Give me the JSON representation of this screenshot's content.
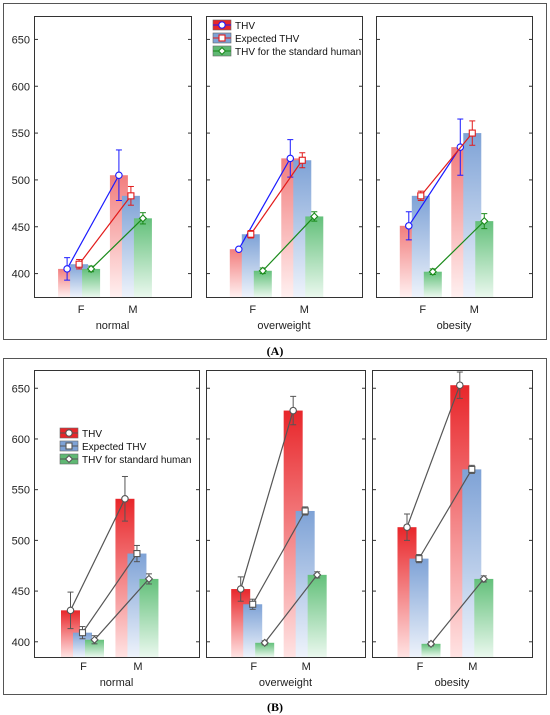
{
  "caption_a": "(A)",
  "caption_b": "(B)",
  "colors": {
    "thv": "#e8262a",
    "expected": "#5a86c5",
    "standard": "#3fa856",
    "line_thv_a": "#1a1aff",
    "line_exp_a": "#e21b1b",
    "line_std_a": "#1a8a1a",
    "line_b": "#555555"
  },
  "chart_data": [
    {
      "type": "bar",
      "id": "A",
      "legend": [
        "THV",
        "Expected THV",
        "THV for the standard human"
      ],
      "legend_position": "top-left of middle panel",
      "ylim": [
        375,
        675
      ],
      "yticks": [
        400,
        450,
        500,
        550,
        600,
        650
      ],
      "categories": [
        "F",
        "M"
      ],
      "groups": [
        {
          "name": "normal",
          "series": [
            {
              "name": "THV",
              "values": [
                405,
                505
              ],
              "errors": [
                12,
                27
              ]
            },
            {
              "name": "Expected THV",
              "values": [
                410,
                483
              ],
              "errors": [
                5,
                10
              ]
            },
            {
              "name": "THV for the standard human",
              "values": [
                405,
                459
              ],
              "errors": [
                3,
                6
              ]
            }
          ]
        },
        {
          "name": "overweight",
          "series": [
            {
              "name": "THV",
              "values": [
                426,
                523
              ],
              "errors": [
                0,
                20
              ]
            },
            {
              "name": "Expected THV",
              "values": [
                442,
                521
              ],
              "errors": [
                4,
                8
              ]
            },
            {
              "name": "THV for the standard human",
              "values": [
                403,
                461
              ],
              "errors": [
                3,
                5
              ]
            }
          ]
        },
        {
          "name": "obesity",
          "series": [
            {
              "name": "THV",
              "values": [
                451,
                535
              ],
              "errors": [
                15,
                30
              ]
            },
            {
              "name": "Expected THV",
              "values": [
                483,
                550
              ],
              "errors": [
                5,
                13
              ]
            },
            {
              "name": "THV for the standard human",
              "values": [
                402,
                456
              ],
              "errors": [
                3,
                8
              ]
            }
          ]
        }
      ]
    },
    {
      "type": "bar",
      "id": "B",
      "legend": [
        "THV",
        "Expected THV",
        "THV for standard human"
      ],
      "legend_position": "upper-left of first panel",
      "ylim": [
        385,
        668
      ],
      "yticks": [
        400,
        450,
        500,
        550,
        600,
        650
      ],
      "categories": [
        "F",
        "M"
      ],
      "groups": [
        {
          "name": "normal",
          "series": [
            {
              "name": "THV",
              "values": [
                431,
                541
              ],
              "errors": [
                18,
                22
              ]
            },
            {
              "name": "Expected THV",
              "values": [
                409,
                487
              ],
              "errors": [
                6,
                8
              ]
            },
            {
              "name": "THV for standard human",
              "values": [
                402,
                462
              ],
              "errors": [
                4,
                5
              ]
            }
          ]
        },
        {
          "name": "overweight",
          "series": [
            {
              "name": "THV",
              "values": [
                452,
                628
              ],
              "errors": [
                12,
                14
              ]
            },
            {
              "name": "Expected THV",
              "values": [
                437,
                529
              ],
              "errors": [
                5,
                4
              ]
            },
            {
              "name": "THV for standard human",
              "values": [
                399,
                466
              ],
              "errors": [
                2,
                3
              ]
            }
          ]
        },
        {
          "name": "obesity",
          "series": [
            {
              "name": "THV",
              "values": [
                513,
                653
              ],
              "errors": [
                13,
                13
              ]
            },
            {
              "name": "Expected THV",
              "values": [
                482,
                570
              ],
              "errors": [
                4,
                4
              ]
            },
            {
              "name": "THV for standard human",
              "values": [
                398,
                462
              ],
              "errors": [
                2,
                3
              ]
            }
          ]
        }
      ]
    }
  ]
}
